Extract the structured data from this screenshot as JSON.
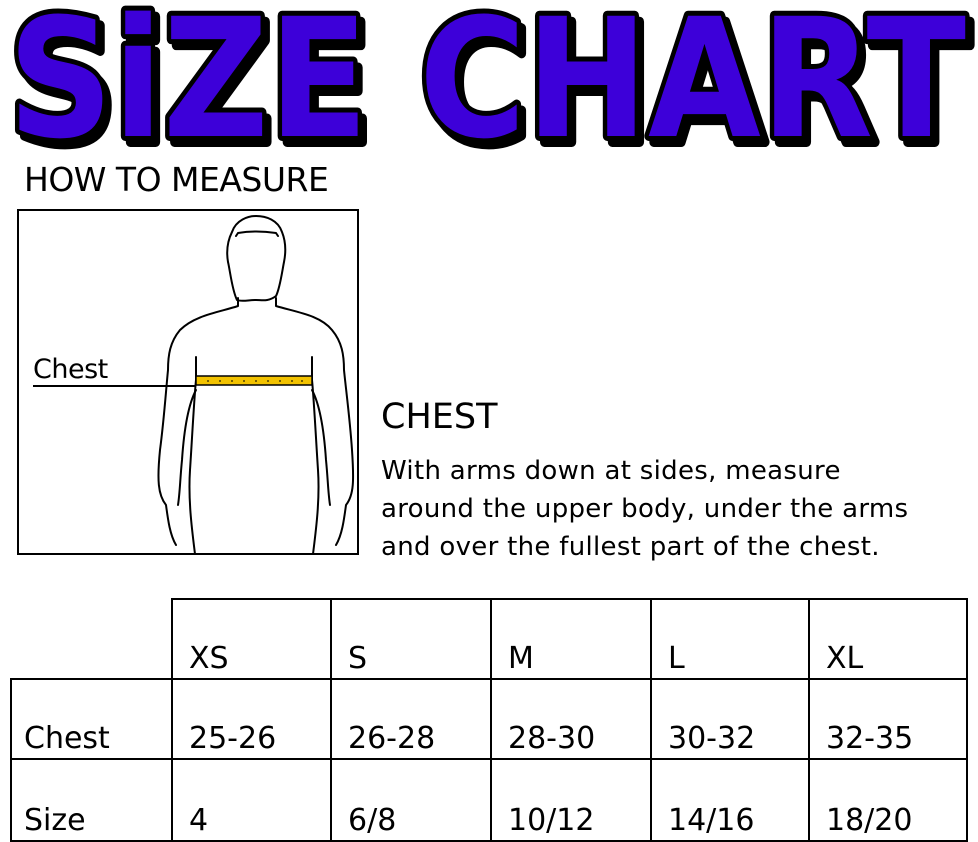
{
  "title": "SiZE CHART",
  "colors": {
    "title_fill": "#3d00d9",
    "title_outline": "#000000",
    "tape": "#f2c200"
  },
  "how_to_measure": "HOW TO MEASURE",
  "figure": {
    "label": "Chest"
  },
  "instructions": {
    "heading": "CHEST",
    "lines": [
      "With arms down at sides, measure",
      "around the upper body, under the arms",
      "and over the fullest part of the chest."
    ]
  },
  "table": {
    "headers": [
      "XS",
      "S",
      "M",
      "L",
      "XL"
    ],
    "rows": [
      {
        "label": "Chest",
        "values": [
          "25-26",
          "26-28",
          "28-30",
          "30-32",
          "32-35"
        ]
      },
      {
        "label": "Size",
        "values": [
          "4",
          "6/8",
          "10/12",
          "14/16",
          "18/20"
        ]
      }
    ]
  }
}
